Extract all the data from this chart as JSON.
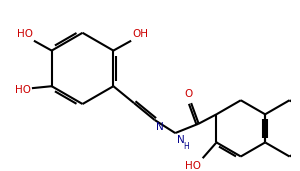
{
  "background_color": "#ffffff",
  "bond_color": "#000000",
  "lw": 1.5,
  "figsize": [
    3.0,
    1.71
  ],
  "dpi": 100,
  "xlim": [
    0,
    300
  ],
  "ylim": [
    0,
    171
  ]
}
